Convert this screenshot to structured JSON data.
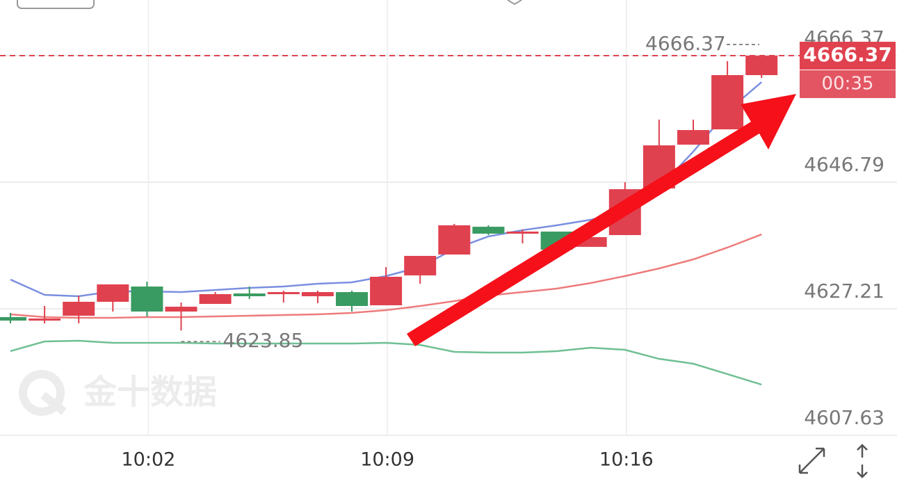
{
  "chart_data": {
    "type": "candlestick",
    "categories": [
      null,
      null,
      null,
      null,
      "10:02",
      null,
      null,
      null,
      null,
      null,
      null,
      "10:09",
      null,
      null,
      null,
      null,
      null,
      null,
      "10:16",
      null,
      null,
      null,
      null
    ],
    "open": [
      4625.92,
      4625.38,
      4626.13,
      4628.29,
      4630.65,
      4626.78,
      4627.96,
      4629.58,
      4629.47,
      4629.15,
      4629.79,
      4627.75,
      4632.37,
      4635.6,
      4639.9,
      4638.94,
      4639.15,
      4636.79,
      4638.61,
      4645.82,
      4652.6,
      4654.97,
      4663.36
    ],
    "high": [
      4626.57,
      4627.64,
      4629.25,
      4630.98,
      4631.41,
      4628.18,
      4629.79,
      4630.65,
      4630.01,
      4630.01,
      4630.01,
      4633.66,
      4635.39,
      4640.34,
      4640.12,
      4639.48,
      4639.15,
      4638.61,
      4646.79,
      4656.47,
      4656.47,
      4665.51,
      4666.37
    ],
    "low": [
      4624.95,
      4624.95,
      4624.95,
      4626.78,
      4626.03,
      4623.85,
      4627.96,
      4628.72,
      4628.18,
      4628.07,
      4626.78,
      4627.75,
      4631.08,
      4635.6,
      4638.61,
      4637.33,
      4636.36,
      4636.79,
      4638.61,
      4645.82,
      4652.6,
      4654.97,
      4662.93
    ],
    "close": [
      4625.38,
      4625.7,
      4628.29,
      4630.98,
      4626.78,
      4627.53,
      4629.47,
      4629.15,
      4629.79,
      4629.79,
      4627.64,
      4632.16,
      4635.39,
      4640.12,
      4638.83,
      4639.15,
      4636.36,
      4638.29,
      4645.71,
      4652.49,
      4654.86,
      4663.36,
      4666.37
    ],
    "up_color": "#e0414f",
    "down_color": "#3a9b62",
    "lines": [
      {
        "color": "#7b8fe0",
        "values": [
          4631.73,
          4629.36,
          4629.15,
          4629.9,
          4629.9,
          4629.79,
          4630.12,
          4630.44,
          4630.65,
          4631.08,
          4631.3,
          4632.27,
          4633.67,
          4636.46,
          4638.4,
          4639.37,
          4640.12,
          4640.98,
          4642.16,
          4645.93,
          4651.52,
          4657.76,
          4662.28
        ]
      },
      {
        "color": "#ee7b7b",
        "values": [
          4626.35,
          4625.92,
          4625.81,
          4625.81,
          4625.92,
          4625.92,
          4626.03,
          4626.13,
          4626.24,
          4626.35,
          4626.57,
          4626.99,
          4627.64,
          4628.39,
          4629.25,
          4629.79,
          4630.33,
          4631.19,
          4632.27,
          4633.45,
          4634.85,
          4636.68,
          4638.72
        ]
      },
      {
        "color": "#6fbf93",
        "values": [
          4620.65,
          4622.15,
          4622.26,
          4621.94,
          4621.94,
          4621.94,
          4621.83,
          4621.83,
          4621.83,
          4621.83,
          4621.83,
          4621.94,
          4621.62,
          4620.54,
          4620.43,
          4620.43,
          4620.65,
          4621.19,
          4620.86,
          4619.46,
          4618.71,
          4617.1,
          4615.48
        ]
      }
    ],
    "ylim": [
      4607.63,
      4674.98
    ],
    "yticks": [
      4607.63,
      4627.21,
      4646.79,
      4666.37
    ],
    "grid": true,
    "last_price": 4666.37,
    "countdown": "00:35",
    "low_label": 4623.85,
    "watermark": "金十数据"
  }
}
